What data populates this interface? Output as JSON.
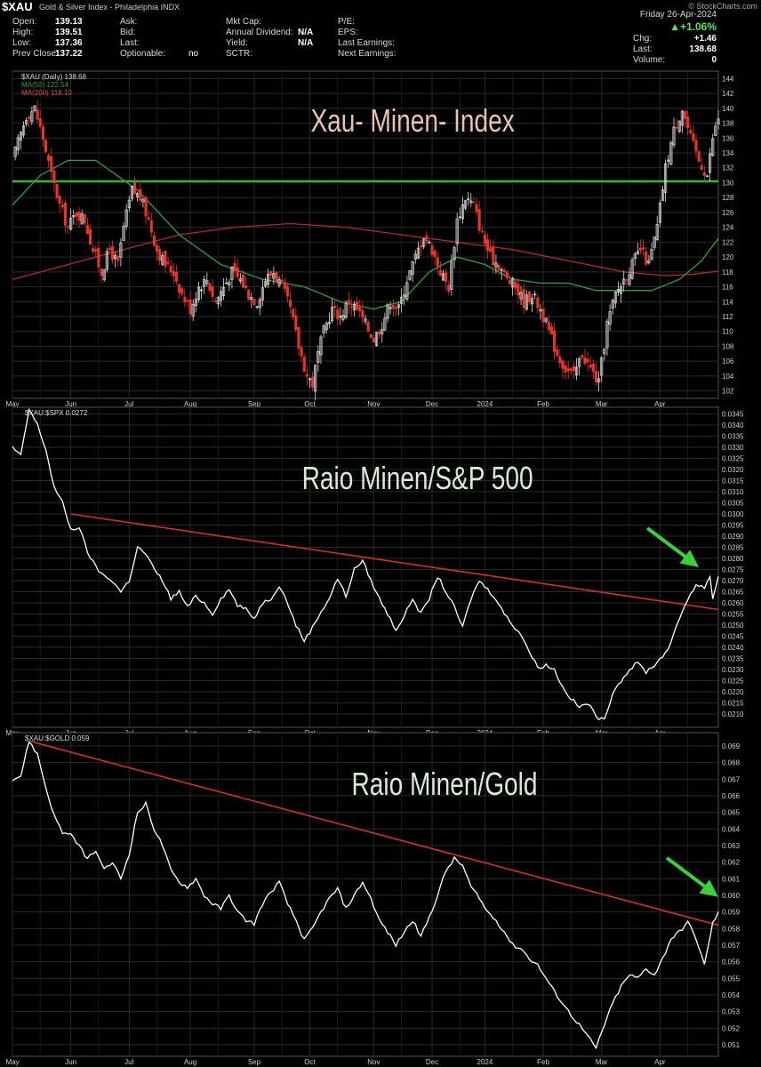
{
  "header": {
    "symbol": "$XAU",
    "description": "Gold & Silver Index - Philadelphia  INDX",
    "watermark": "© StockCharts.com",
    "date": "Friday  26-Apr-2024",
    "change_pct": "▲+1.06%",
    "chg_label": "Chg:",
    "chg_value": "+1.46",
    "last_label": "Last:",
    "last_value": "138.68",
    "volume_label": "Volume:",
    "volume_value": "0",
    "open_label": "Open:",
    "open_value": "139.13",
    "high_label": "High:",
    "high_value": "139.51",
    "low_label": "Low:",
    "low_value": "137.36",
    "prev_label": "Prev Close:",
    "prev_value": "137.22",
    "ask_label": "Ask:",
    "bid_label": "Bid:",
    "last2_label": "Last:",
    "optionable_label": "Optionable:",
    "optionable_value": "no",
    "mktcap_label": "Mkt Cap:",
    "div_label": "Annual Dividend:",
    "div_value": "N/A",
    "yield_label": "Yield:",
    "yield_value": "N/A",
    "sctr_label": "SCTR:",
    "pe_label": "P/E:",
    "eps_label": "EPS:",
    "last_earn_label": "Last Earnings:",
    "next_earn_label": "Next Earnings:"
  },
  "colors": {
    "bg": "#000000",
    "grid": "#2a2a2a",
    "up": "#e0e0e0",
    "down": "#e8352a",
    "ma50": "#2f9e3f",
    "ma200": "#b02a2a",
    "trend": "#d03030",
    "support": "#39d039",
    "arrow": "#39d039",
    "ratio_line": "#ffffff"
  },
  "chart_data": [
    {
      "type": "candlestick",
      "legend": [
        "$XAU (Daily) 138.68",
        "MA(50) 122.54",
        "MA(200) 118.10"
      ],
      "title": "Xau- Minen- Index",
      "x_labels": [
        "May",
        "Jun",
        "Jul",
        "Aug",
        "Sep",
        "Oct",
        "Nov",
        "Dec",
        "2024",
        "Feb",
        "Mar",
        "Apr"
      ],
      "x_label_dates": [
        0,
        21,
        42,
        64,
        87,
        107,
        130,
        151,
        170,
        191,
        212,
        233
      ],
      "y_ticks": [
        102,
        104,
        106,
        108,
        110,
        112,
        114,
        116,
        118,
        120,
        122,
        124,
        126,
        128,
        130,
        132,
        134,
        136,
        138,
        140,
        142,
        144
      ],
      "ylim": [
        101,
        145
      ],
      "support_level": 130.2,
      "close_path": [
        [
          0,
          133
        ],
        [
          5,
          139
        ],
        [
          8,
          140
        ],
        [
          11,
          136
        ],
        [
          14,
          131
        ],
        [
          17,
          127
        ],
        [
          20,
          124
        ],
        [
          23,
          126
        ],
        [
          26,
          125
        ],
        [
          29,
          121
        ],
        [
          32,
          118
        ],
        [
          35,
          121
        ],
        [
          38,
          119
        ],
        [
          40,
          124
        ],
        [
          43,
          129
        ],
        [
          46,
          128
        ],
        [
          49,
          125
        ],
        [
          52,
          121
        ],
        [
          55,
          119
        ],
        [
          58,
          118
        ],
        [
          61,
          115
        ],
        [
          64,
          113
        ],
        [
          67,
          116
        ],
        [
          70,
          117
        ],
        [
          73,
          114
        ],
        [
          76,
          116
        ],
        [
          79,
          118
        ],
        [
          82,
          117
        ],
        [
          85,
          115
        ],
        [
          88,
          114
        ],
        [
          91,
          117
        ],
        [
          94,
          118
        ],
        [
          97,
          116
        ],
        [
          100,
          113
        ],
        [
          103,
          108
        ],
        [
          106,
          104
        ],
        [
          108,
          103
        ],
        [
          110,
          107
        ],
        [
          112,
          110
        ],
        [
          115,
          113
        ],
        [
          118,
          112
        ],
        [
          121,
          114
        ],
        [
          124,
          113
        ],
        [
          127,
          111
        ],
        [
          130,
          109
        ],
        [
          133,
          111
        ],
        [
          136,
          114
        ],
        [
          139,
          113
        ],
        [
          142,
          117
        ],
        [
          145,
          120
        ],
        [
          148,
          123
        ],
        [
          151,
          121
        ],
        [
          154,
          118
        ],
        [
          157,
          116
        ],
        [
          160,
          125
        ],
        [
          163,
          128
        ],
        [
          166,
          127
        ],
        [
          169,
          123
        ],
        [
          172,
          120
        ],
        [
          175,
          119
        ],
        [
          178,
          117
        ],
        [
          181,
          116
        ],
        [
          184,
          114
        ],
        [
          187,
          115
        ],
        [
          190,
          113
        ],
        [
          193,
          110
        ],
        [
          196,
          107
        ],
        [
          199,
          105
        ],
        [
          202,
          104
        ],
        [
          205,
          107
        ],
        [
          208,
          105
        ],
        [
          211,
          103
        ],
        [
          214,
          111
        ],
        [
          217,
          115
        ],
        [
          220,
          117
        ],
        [
          223,
          119
        ],
        [
          226,
          121
        ],
        [
          229,
          119
        ],
        [
          232,
          124
        ],
        [
          235,
          132
        ],
        [
          238,
          137
        ],
        [
          241,
          140
        ],
        [
          244,
          136
        ],
        [
          247,
          133
        ],
        [
          250,
          131
        ],
        [
          252,
          136
        ],
        [
          254,
          138.7
        ]
      ],
      "ma50_path": [
        [
          0,
          127
        ],
        [
          10,
          131
        ],
        [
          20,
          133
        ],
        [
          30,
          133
        ],
        [
          45,
          129
        ],
        [
          60,
          123
        ],
        [
          75,
          119
        ],
        [
          90,
          117
        ],
        [
          105,
          116
        ],
        [
          118,
          114
        ],
        [
          130,
          113
        ],
        [
          140,
          114
        ],
        [
          150,
          118
        ],
        [
          160,
          120
        ],
        [
          170,
          119
        ],
        [
          180,
          117
        ],
        [
          190,
          116.5
        ],
        [
          200,
          116.5
        ],
        [
          210,
          115.5
        ],
        [
          220,
          115.5
        ],
        [
          230,
          115.5
        ],
        [
          240,
          117
        ],
        [
          248,
          119.5
        ],
        [
          254,
          122.5
        ]
      ],
      "ma200_path": [
        [
          0,
          117
        ],
        [
          20,
          119
        ],
        [
          40,
          121
        ],
        [
          60,
          123
        ],
        [
          80,
          124
        ],
        [
          100,
          124.5
        ],
        [
          120,
          124
        ],
        [
          140,
          123
        ],
        [
          160,
          122
        ],
        [
          180,
          121
        ],
        [
          200,
          119.5
        ],
        [
          220,
          118
        ],
        [
          235,
          117.5
        ],
        [
          245,
          117.7
        ],
        [
          254,
          118.1
        ]
      ]
    },
    {
      "type": "line",
      "legend": [
        "$XAU:$SPX 0.0272"
      ],
      "title": "Raio Minen/S&P 500",
      "y_ticks": [
        0.021,
        0.0215,
        0.022,
        0.0225,
        0.023,
        0.0235,
        0.024,
        0.0245,
        0.025,
        0.0255,
        0.026,
        0.0265,
        0.027,
        0.0275,
        0.028,
        0.0285,
        0.029,
        0.0295,
        0.03,
        0.0305,
        0.031,
        0.0315,
        0.032,
        0.0325,
        0.033,
        0.0335,
        0.034,
        0.0345
      ],
      "ylim": [
        0.0204,
        0.0348
      ],
      "trendline": [
        [
          21,
          0.03
        ],
        [
          254,
          0.0257
        ]
      ],
      "path": [
        [
          0,
          0.033
        ],
        [
          3,
          0.0326
        ],
        [
          6,
          0.0347
        ],
        [
          9,
          0.034
        ],
        [
          12,
          0.0329
        ],
        [
          15,
          0.0312
        ],
        [
          18,
          0.0305
        ],
        [
          21,
          0.0293
        ],
        [
          24,
          0.0294
        ],
        [
          27,
          0.0283
        ],
        [
          30,
          0.0276
        ],
        [
          33,
          0.0272
        ],
        [
          36,
          0.027
        ],
        [
          39,
          0.0265
        ],
        [
          42,
          0.027
        ],
        [
          45,
          0.0285
        ],
        [
          48,
          0.0282
        ],
        [
          51,
          0.0275
        ],
        [
          54,
          0.027
        ],
        [
          57,
          0.0262
        ],
        [
          60,
          0.0265
        ],
        [
          63,
          0.0258
        ],
        [
          66,
          0.0263
        ],
        [
          69,
          0.026
        ],
        [
          72,
          0.0255
        ],
        [
          75,
          0.0262
        ],
        [
          78,
          0.0266
        ],
        [
          81,
          0.0259
        ],
        [
          84,
          0.0257
        ],
        [
          87,
          0.0253
        ],
        [
          90,
          0.026
        ],
        [
          93,
          0.0262
        ],
        [
          96,
          0.0268
        ],
        [
          99,
          0.026
        ],
        [
          102,
          0.025
        ],
        [
          105,
          0.0243
        ],
        [
          108,
          0.0249
        ],
        [
          111,
          0.0256
        ],
        [
          114,
          0.0262
        ],
        [
          117,
          0.0271
        ],
        [
          120,
          0.0263
        ],
        [
          123,
          0.0275
        ],
        [
          126,
          0.0279
        ],
        [
          129,
          0.027
        ],
        [
          132,
          0.0262
        ],
        [
          135,
          0.0255
        ],
        [
          138,
          0.0248
        ],
        [
          141,
          0.0254
        ],
        [
          144,
          0.0262
        ],
        [
          147,
          0.0255
        ],
        [
          150,
          0.0262
        ],
        [
          153,
          0.0272
        ],
        [
          156,
          0.0265
        ],
        [
          159,
          0.0258
        ],
        [
          162,
          0.0249
        ],
        [
          165,
          0.0262
        ],
        [
          168,
          0.027
        ],
        [
          171,
          0.0266
        ],
        [
          174,
          0.0262
        ],
        [
          177,
          0.0255
        ],
        [
          180,
          0.025
        ],
        [
          183,
          0.0246
        ],
        [
          186,
          0.0238
        ],
        [
          189,
          0.0231
        ],
        [
          192,
          0.0232
        ],
        [
          195,
          0.023
        ],
        [
          198,
          0.0222
        ],
        [
          201,
          0.0217
        ],
        [
          204,
          0.0213
        ],
        [
          207,
          0.0215
        ],
        [
          210,
          0.0209
        ],
        [
          213,
          0.0207
        ],
        [
          216,
          0.022
        ],
        [
          219,
          0.0225
        ],
        [
          222,
          0.023
        ],
        [
          225,
          0.0233
        ],
        [
          228,
          0.0229
        ],
        [
          231,
          0.0232
        ],
        [
          234,
          0.0236
        ],
        [
          237,
          0.0242
        ],
        [
          240,
          0.0253
        ],
        [
          243,
          0.0262
        ],
        [
          246,
          0.0268
        ],
        [
          249,
          0.0267
        ],
        [
          251,
          0.0272
        ],
        [
          252,
          0.0262
        ],
        [
          254,
          0.0272
        ]
      ],
      "arrow_tip": [
        247,
        0.0276
      ]
    },
    {
      "type": "line",
      "legend": [
        "$XAU:$GOLD 0.059"
      ],
      "title": "Raio Minen/Gold",
      "y_ticks": [
        0.051,
        0.052,
        0.053,
        0.054,
        0.055,
        0.056,
        0.057,
        0.058,
        0.059,
        0.06,
        0.061,
        0.062,
        0.063,
        0.064,
        0.065,
        0.066,
        0.067,
        0.068,
        0.069
      ],
      "ylim": [
        0.0503,
        0.0698
      ],
      "trendline": [
        [
          6,
          0.0693
        ],
        [
          254,
          0.0582
        ]
      ],
      "path": [
        [
          0,
          0.067
        ],
        [
          3,
          0.0672
        ],
        [
          6,
          0.0693
        ],
        [
          9,
          0.0685
        ],
        [
          12,
          0.0665
        ],
        [
          15,
          0.0648
        ],
        [
          18,
          0.0638
        ],
        [
          21,
          0.0636
        ],
        [
          24,
          0.063
        ],
        [
          27,
          0.0622
        ],
        [
          30,
          0.0627
        ],
        [
          33,
          0.0615
        ],
        [
          36,
          0.062
        ],
        [
          39,
          0.061
        ],
        [
          42,
          0.0625
        ],
        [
          45,
          0.065
        ],
        [
          48,
          0.0655
        ],
        [
          51,
          0.064
        ],
        [
          54,
          0.063
        ],
        [
          57,
          0.0615
        ],
        [
          60,
          0.0608
        ],
        [
          63,
          0.0605
        ],
        [
          66,
          0.061
        ],
        [
          69,
          0.06
        ],
        [
          72,
          0.0595
        ],
        [
          75,
          0.0592
        ],
        [
          78,
          0.06
        ],
        [
          81,
          0.059
        ],
        [
          84,
          0.0585
        ],
        [
          87,
          0.0583
        ],
        [
          90,
          0.0595
        ],
        [
          93,
          0.0602
        ],
        [
          96,
          0.0608
        ],
        [
          99,
          0.0595
        ],
        [
          102,
          0.0585
        ],
        [
          105,
          0.0573
        ],
        [
          108,
          0.058
        ],
        [
          111,
          0.059
        ],
        [
          114,
          0.0598
        ],
        [
          117,
          0.0604
        ],
        [
          120,
          0.0592
        ],
        [
          123,
          0.06
        ],
        [
          126,
          0.0608
        ],
        [
          129,
          0.0598
        ],
        [
          132,
          0.0585
        ],
        [
          135,
          0.0578
        ],
        [
          138,
          0.057
        ],
        [
          141,
          0.0578
        ],
        [
          144,
          0.0585
        ],
        [
          147,
          0.0575
        ],
        [
          150,
          0.0587
        ],
        [
          153,
          0.06
        ],
        [
          156,
          0.0615
        ],
        [
          159,
          0.0622
        ],
        [
          162,
          0.0618
        ],
        [
          165,
          0.0605
        ],
        [
          168,
          0.0598
        ],
        [
          171,
          0.059
        ],
        [
          174,
          0.0585
        ],
        [
          177,
          0.0578
        ],
        [
          180,
          0.057
        ],
        [
          183,
          0.0568
        ],
        [
          186,
          0.0562
        ],
        [
          189,
          0.0558
        ],
        [
          192,
          0.055
        ],
        [
          195,
          0.0542
        ],
        [
          198,
          0.0535
        ],
        [
          201,
          0.0528
        ],
        [
          204,
          0.0522
        ],
        [
          207,
          0.0515
        ],
        [
          210,
          0.0508
        ],
        [
          213,
          0.0522
        ],
        [
          216,
          0.0535
        ],
        [
          219,
          0.0545
        ],
        [
          222,
          0.0552
        ],
        [
          225,
          0.055
        ],
        [
          228,
          0.0556
        ],
        [
          231,
          0.0552
        ],
        [
          234,
          0.0562
        ],
        [
          237,
          0.0574
        ],
        [
          240,
          0.0578
        ],
        [
          243,
          0.0584
        ],
        [
          246,
          0.0574
        ],
        [
          249,
          0.0558
        ],
        [
          251,
          0.0575
        ],
        [
          252,
          0.0583
        ],
        [
          254,
          0.059
        ]
      ],
      "arrow_tip": [
        254,
        0.0599
      ]
    }
  ]
}
